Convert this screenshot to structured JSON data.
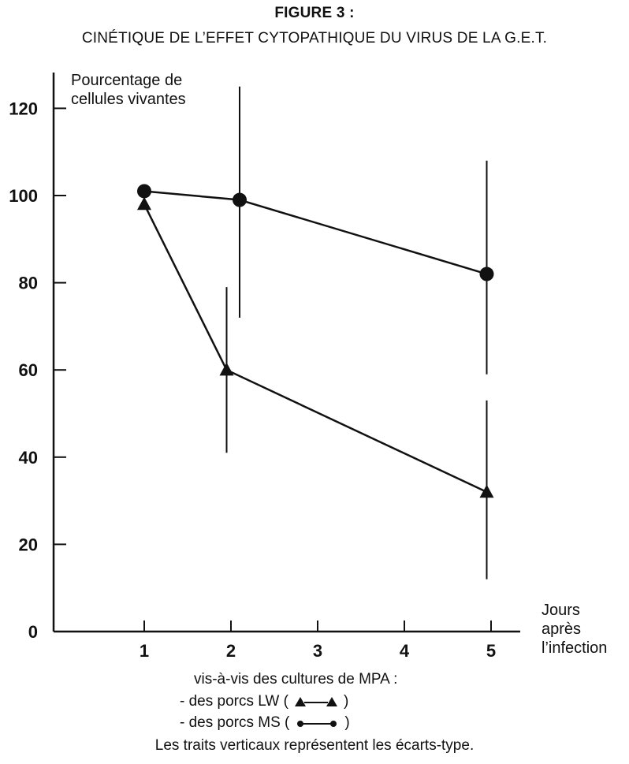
{
  "title": "FIGURE 3 :",
  "subtitle": "CINÉTIQUE DE L’EFFET CYTOPATHIQUE DU VIRUS DE LA G.E.T.",
  "chart_data": {
    "type": "line",
    "ylabel_lines": [
      "Pourcentage de",
      "cellules vivantes"
    ],
    "xlabel_lines": [
      "Jours",
      "après",
      "l’infection"
    ],
    "ylim": [
      0,
      125
    ],
    "yticks": [
      0,
      20,
      40,
      60,
      80,
      100,
      120
    ],
    "xlim": [
      0,
      5.4
    ],
    "xticks": [
      1,
      2,
      3,
      4,
      5
    ],
    "grid": false,
    "series": [
      {
        "marker": "triangle",
        "x": [
          1,
          1.95,
          4.95
        ],
        "y": [
          98,
          60,
          32
        ],
        "error_bars": [
          null,
          [
            41,
            79
          ],
          [
            12,
            53
          ]
        ]
      },
      {
        "marker": "circle",
        "x": [
          1,
          2.1,
          4.95
        ],
        "y": [
          101,
          99,
          82
        ],
        "error_bars": [
          null,
          [
            72,
            125
          ],
          [
            59,
            108
          ]
        ]
      }
    ]
  },
  "legend": {
    "intro": "vis-à-vis des cultures de MPA :",
    "items": [
      {
        "prefix": "- des porcs LW (",
        "marker": "triangle",
        "suffix": ")"
      },
      {
        "prefix": "- des porcs MS (",
        "marker": "circle",
        "suffix": ")"
      }
    ],
    "note": "Les traits verticaux représentent les écarts-type."
  }
}
